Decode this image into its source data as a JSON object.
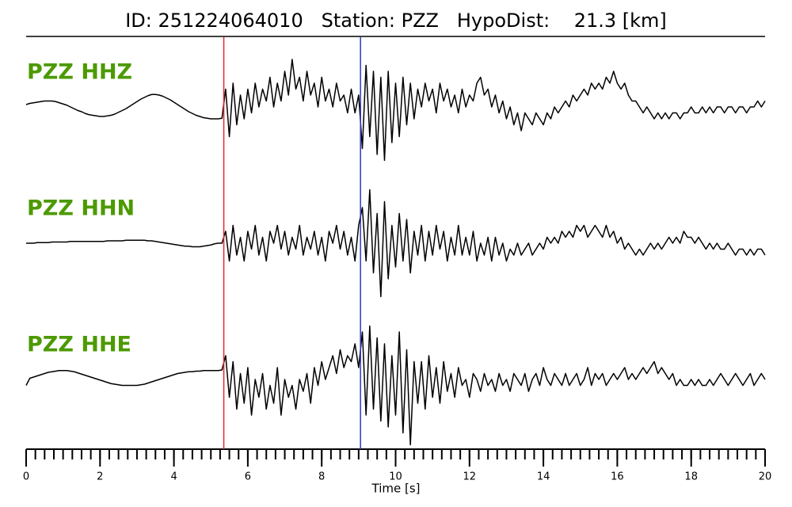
{
  "chart_data": {
    "type": "line",
    "title": "ID: 251224064010   Station: PZZ   HypoDist:    21.3 [km]",
    "xlabel": "Time [s]",
    "label_color": "#4c9a00",
    "xlim": [
      0,
      20
    ],
    "xticks": [
      0,
      2,
      4,
      6,
      8,
      10,
      12,
      14,
      16,
      18,
      20
    ],
    "xminorticks": [
      0,
      0.25,
      0.5,
      0.75,
      1,
      1.25,
      1.5,
      1.75,
      2,
      2.25,
      2.5,
      2.75,
      3,
      3.25,
      3.5,
      3.75,
      4,
      4.25,
      4.5,
      4.75,
      5,
      5.25,
      5.5,
      5.75,
      6,
      6.25,
      6.5,
      6.75,
      7,
      7.25,
      7.5,
      7.75,
      8,
      8.25,
      8.5,
      8.75,
      9,
      9.25,
      9.5,
      9.75,
      10,
      10.25,
      10.5,
      10.75,
      11,
      11.25,
      11.5,
      11.75,
      12,
      12.25,
      12.5,
      12.75,
      13,
      13.25,
      13.5,
      13.75,
      14,
      14.25,
      14.5,
      14.75,
      15,
      15.25,
      15.5,
      15.75,
      16,
      16.25,
      16.5,
      16.75,
      17,
      17.25,
      17.5,
      17.75,
      18,
      18.25,
      18.5,
      18.75,
      19,
      19.25,
      19.5,
      19.75,
      20
    ],
    "ylim": [
      -10,
      10
    ],
    "picks": [
      {
        "x": 5.35,
        "color": "#e8262a"
      },
      {
        "x": 9.05,
        "color": "#2a3cc0"
      }
    ],
    "x": [
      0,
      0.1,
      0.2,
      0.3,
      0.4,
      0.5,
      0.6,
      0.7,
      0.8,
      0.9,
      1,
      1.1,
      1.2,
      1.3,
      1.4,
      1.5,
      1.6,
      1.7,
      1.8,
      1.9,
      2,
      2.1,
      2.2,
      2.3,
      2.4,
      2.5,
      2.6,
      2.7,
      2.8,
      2.9,
      3,
      3.1,
      3.2,
      3.3,
      3.4,
      3.5,
      3.6,
      3.7,
      3.8,
      3.9,
      4,
      4.1,
      4.2,
      4.3,
      4.4,
      4.5,
      4.6,
      4.7,
      4.8,
      4.9,
      5,
      5.1,
      5.2,
      5.3,
      5.4,
      5.5,
      5.6,
      5.7,
      5.8,
      5.9,
      6,
      6.1,
      6.2,
      6.3,
      6.4,
      6.5,
      6.6,
      6.7,
      6.8,
      6.9,
      7,
      7.1,
      7.2,
      7.3,
      7.4,
      7.5,
      7.6,
      7.7,
      7.8,
      7.9,
      8,
      8.1,
      8.2,
      8.3,
      8.4,
      8.5,
      8.6,
      8.7,
      8.8,
      8.9,
      9,
      9.1,
      9.2,
      9.3,
      9.4,
      9.5,
      9.6,
      9.7,
      9.8,
      9.9,
      10,
      10.1,
      10.2,
      10.3,
      10.4,
      10.5,
      10.6,
      10.7,
      10.8,
      10.9,
      11,
      11.1,
      11.2,
      11.3,
      11.4,
      11.5,
      11.6,
      11.7,
      11.8,
      11.9,
      12,
      12.1,
      12.2,
      12.3,
      12.4,
      12.5,
      12.6,
      12.7,
      12.8,
      12.9,
      13,
      13.1,
      13.2,
      13.3,
      13.4,
      13.5,
      13.6,
      13.7,
      13.8,
      13.9,
      14,
      14.1,
      14.2,
      14.3,
      14.4,
      14.5,
      14.6,
      14.7,
      14.8,
      14.9,
      15,
      15.1,
      15.2,
      15.3,
      15.4,
      15.5,
      15.6,
      15.7,
      15.8,
      15.9,
      16,
      16.1,
      16.2,
      16.3,
      16.4,
      16.5,
      16.6,
      16.7,
      16.8,
      16.9,
      17,
      17.1,
      17.2,
      17.3,
      17.4,
      17.5,
      17.6,
      17.7,
      17.8,
      17.9,
      18,
      18.1,
      18.2,
      18.3,
      18.4,
      18.5,
      18.6,
      18.7,
      18.8,
      18.9,
      19,
      19.1,
      19.2,
      19.3,
      19.4,
      19.5,
      19.6,
      19.7,
      19.8,
      19.9,
      20
    ],
    "series": [
      {
        "name": "PZZ HHZ",
        "color": "#000000",
        "values": [
          0.4,
          0.6,
          0.7,
          0.8,
          0.9,
          1.0,
          1.0,
          1.0,
          0.9,
          0.7,
          0.5,
          0.3,
          0,
          -0.3,
          -0.6,
          -0.8,
          -1.1,
          -1.3,
          -1.4,
          -1.5,
          -1.6,
          -1.6,
          -1.5,
          -1.4,
          -1.2,
          -0.9,
          -0.6,
          -0.3,
          0.1,
          0.5,
          0.9,
          1.3,
          1.6,
          1.9,
          2.1,
          2.1,
          2.0,
          1.8,
          1.5,
          1.2,
          0.8,
          0.4,
          0,
          -0.4,
          -0.8,
          -1.1,
          -1.4,
          -1.6,
          -1.8,
          -1.9,
          -2.0,
          -2.0,
          -2.0,
          -1.9,
          3,
          -5,
          4,
          -3,
          2,
          -2,
          3,
          -1,
          4,
          0,
          3,
          1,
          5,
          0,
          4,
          1,
          6,
          2,
          8,
          3,
          5,
          1,
          6,
          2,
          4,
          0,
          5,
          1,
          3,
          0,
          4,
          1,
          2,
          -1,
          3,
          -1,
          2,
          -7,
          7,
          -5,
          6,
          -8,
          5,
          -9,
          6,
          -6,
          4,
          -5,
          5,
          -3,
          4,
          -2,
          3,
          0,
          4,
          1,
          3,
          -1,
          4,
          1,
          3,
          0,
          2,
          -1,
          3,
          0,
          2,
          1,
          4,
          5,
          2,
          3,
          0,
          2,
          -1,
          1,
          -2,
          0,
          -3,
          -1,
          -4,
          -1,
          -2,
          -3,
          -1,
          -2,
          -3,
          -1,
          -2,
          0,
          -1,
          0,
          1,
          0,
          2,
          1,
          2,
          3,
          2,
          4,
          3,
          4,
          3,
          5,
          4,
          6,
          4,
          3,
          4,
          2,
          1,
          1,
          0,
          -1,
          0,
          -1,
          -2,
          -1,
          -2,
          -1,
          -2,
          -1,
          -1,
          -2,
          -1,
          -1,
          0,
          -1,
          -1,
          0,
          -1,
          0,
          -1,
          0,
          0,
          -1,
          0,
          0,
          -1,
          0,
          0,
          -1,
          0,
          0,
          1,
          0,
          1
        ]
      },
      {
        "name": "PZZ HHN",
        "color": "#000000",
        "values": [
          0,
          0,
          0,
          0.1,
          0.1,
          0.1,
          0.1,
          0.2,
          0.2,
          0.2,
          0.2,
          0.2,
          0.3,
          0.3,
          0.3,
          0.3,
          0.3,
          0.3,
          0.3,
          0.3,
          0.3,
          0.3,
          0.4,
          0.4,
          0.4,
          0.4,
          0.4,
          0.5,
          0.5,
          0.5,
          0.5,
          0.5,
          0.5,
          0.4,
          0.4,
          0.3,
          0.2,
          0.1,
          0,
          -0.1,
          -0.2,
          -0.3,
          -0.4,
          -0.5,
          -0.5,
          -0.6,
          -0.6,
          -0.6,
          -0.5,
          -0.4,
          -0.3,
          -0.1,
          0,
          0,
          2,
          -3,
          3,
          -2,
          1,
          -3,
          2,
          -1,
          3,
          -2,
          1,
          -3,
          2,
          0,
          3,
          -1,
          2,
          -2,
          1,
          -1,
          3,
          -2,
          1,
          -1,
          2,
          -2,
          1,
          -3,
          2,
          0,
          3,
          -1,
          2,
          -2,
          1,
          -3,
          3,
          6,
          -3,
          9,
          -5,
          5,
          -9,
          7,
          -6,
          3,
          -4,
          5,
          -3,
          4,
          -5,
          2,
          -2,
          3,
          -3,
          2,
          -2,
          3,
          -1,
          2,
          -3,
          1,
          -2,
          3,
          -2,
          1,
          -2,
          2,
          -3,
          0,
          -2,
          1,
          -3,
          1,
          -2,
          0,
          -3,
          -1,
          -2,
          0,
          -2,
          -1,
          0,
          -2,
          -1,
          0,
          -1,
          1,
          0,
          1,
          0,
          2,
          1,
          2,
          1,
          3,
          2,
          3,
          1,
          2,
          3,
          2,
          1,
          3,
          1,
          2,
          0,
          1,
          -1,
          0,
          -1,
          -2,
          -1,
          -2,
          -1,
          0,
          -1,
          0,
          -1,
          0,
          1,
          0,
          1,
          0,
          2,
          1,
          1,
          0,
          1,
          0,
          -1,
          0,
          -1,
          0,
          -1,
          -1,
          0,
          -1,
          -2,
          -1,
          -1,
          -2,
          -1,
          -2,
          -1,
          -1,
          -2
        ]
      },
      {
        "name": "PZZ HHE",
        "color": "#000000",
        "values": [
          -1,
          0.2,
          0.4,
          0.6,
          0.8,
          1,
          1.2,
          1.3,
          1.4,
          1.5,
          1.5,
          1.5,
          1.4,
          1.3,
          1.1,
          0.9,
          0.7,
          0.5,
          0.3,
          0.1,
          -0.1,
          -0.3,
          -0.5,
          -0.7,
          -0.8,
          -0.9,
          -1,
          -1,
          -1,
          -1,
          -1,
          -0.9,
          -0.8,
          -0.6,
          -0.4,
          -0.2,
          0,
          0.2,
          0.4,
          0.6,
          0.8,
          1,
          1.1,
          1.2,
          1.3,
          1.3,
          1.4,
          1.4,
          1.5,
          1.5,
          1.5,
          1.5,
          1.5,
          1.6,
          4,
          -3,
          3,
          -5,
          1,
          -4,
          2,
          -6,
          0,
          -3,
          1,
          -5,
          -1,
          -4,
          2,
          -6,
          0,
          -3,
          -1,
          -5,
          0,
          -2,
          1,
          -4,
          2,
          -1,
          3,
          0,
          2,
          4,
          1,
          5,
          2,
          4,
          3,
          6,
          2,
          8,
          -6,
          9,
          -5,
          7,
          -7,
          6,
          -8,
          4,
          -6,
          8,
          -9,
          5,
          -11,
          3,
          -4,
          3,
          -5,
          4,
          -3,
          2,
          -4,
          3,
          -2,
          1,
          -3,
          2,
          -1,
          0,
          -3,
          1,
          0,
          -2,
          1,
          -1,
          0,
          -2,
          1,
          -1,
          0,
          -2,
          1,
          0,
          -1,
          1,
          -2,
          0,
          1,
          -1,
          2,
          0,
          -1,
          1,
          0,
          -1,
          1,
          -1,
          0,
          1,
          -1,
          0,
          2,
          -1,
          1,
          0,
          1,
          -1,
          0,
          1,
          0,
          1,
          2,
          0,
          1,
          0,
          1,
          2,
          1,
          2,
          3,
          1,
          2,
          1,
          0,
          1,
          -1,
          0,
          -1,
          -1,
          0,
          -1,
          0,
          -1,
          -1,
          0,
          -1,
          0,
          1,
          0,
          -1,
          0,
          1,
          0,
          -1,
          0,
          1,
          -1,
          0,
          1,
          0
        ]
      }
    ]
  }
}
